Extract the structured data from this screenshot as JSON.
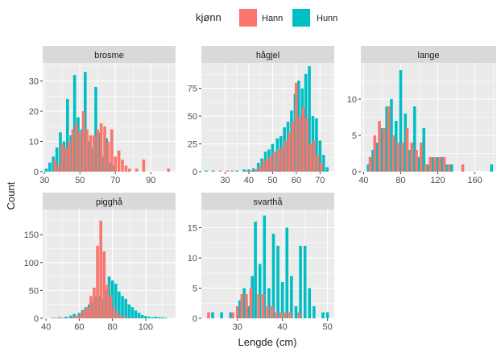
{
  "chart_data": {
    "type": "histogram",
    "xlabel": "Lengde (cm)",
    "ylabel": "Count",
    "legend": {
      "title": "kjønn",
      "position": "top",
      "items": [
        {
          "name": "Hann",
          "color": "#F8766D"
        },
        {
          "name": "Hunn",
          "color": "#00BFC4"
        }
      ]
    },
    "colors": {
      "panel": "#ebebeb",
      "grid": "#ffffff",
      "strip": "#d9d9d9",
      "Hann": "#F8766D",
      "Hunn": "#00BFC4"
    },
    "facets": [
      {
        "name": "brosme",
        "xlim": [
          29,
          104
        ],
        "ylim": [
          0,
          36
        ],
        "xticks": [
          30,
          50,
          70,
          90
        ],
        "yticks": [
          0,
          10,
          20,
          30
        ],
        "hunn": [
          [
            31,
            1
          ],
          [
            33,
            3
          ],
          [
            35,
            5
          ],
          [
            37,
            8
          ],
          [
            39,
            13
          ],
          [
            41,
            10
          ],
          [
            43,
            24
          ],
          [
            45,
            12
          ],
          [
            47,
            32
          ],
          [
            49,
            18
          ],
          [
            51,
            14
          ],
          [
            53,
            33
          ],
          [
            55,
            10
          ],
          [
            57,
            8
          ],
          [
            59,
            28
          ],
          [
            61,
            13
          ],
          [
            63,
            5
          ],
          [
            65,
            11
          ],
          [
            67,
            3
          ],
          [
            69,
            2
          ]
        ],
        "hann": [
          [
            36,
            4
          ],
          [
            38,
            2
          ],
          [
            40,
            9
          ],
          [
            42,
            8
          ],
          [
            44,
            10
          ],
          [
            46,
            14
          ],
          [
            48,
            16
          ],
          [
            50,
            13
          ],
          [
            52,
            20
          ],
          [
            54,
            14
          ],
          [
            56,
            12
          ],
          [
            58,
            12
          ],
          [
            60,
            14
          ],
          [
            62,
            16
          ],
          [
            64,
            15
          ],
          [
            66,
            10
          ],
          [
            68,
            14
          ],
          [
            70,
            5
          ],
          [
            72,
            7
          ],
          [
            74,
            4
          ],
          [
            76,
            2
          ],
          [
            78,
            1
          ],
          [
            82,
            1
          ],
          [
            86,
            4
          ],
          [
            100,
            1
          ]
        ]
      },
      {
        "name": "hågjel",
        "xlim": [
          20,
          76
        ],
        "ylim": [
          0,
          98
        ],
        "xticks": [
          30,
          40,
          50,
          60,
          70
        ],
        "yticks": [
          0,
          25,
          50,
          75
        ],
        "hunn": [
          [
            22,
            1
          ],
          [
            25,
            1
          ],
          [
            35,
            1
          ],
          [
            38,
            2
          ],
          [
            40,
            2
          ],
          [
            42,
            3
          ],
          [
            44,
            8
          ],
          [
            45.5,
            12
          ],
          [
            47,
            18
          ],
          [
            48.5,
            20
          ],
          [
            50,
            25
          ],
          [
            52,
            30
          ],
          [
            53.5,
            32
          ],
          [
            55,
            40
          ],
          [
            56.5,
            45
          ],
          [
            58,
            55
          ],
          [
            59.5,
            70
          ],
          [
            61,
            82
          ],
          [
            62.5,
            75
          ],
          [
            64,
            88
          ],
          [
            65.5,
            95
          ],
          [
            67,
            50
          ],
          [
            68.5,
            48
          ],
          [
            70,
            28
          ],
          [
            71.5,
            15
          ],
          [
            73,
            4
          ]
        ],
        "hann": [
          [
            28,
            1
          ],
          [
            31,
            1
          ],
          [
            33,
            1
          ],
          [
            39,
            1
          ],
          [
            41,
            1
          ],
          [
            43,
            2
          ],
          [
            44.7,
            5
          ],
          [
            46.2,
            10
          ],
          [
            47.7,
            12
          ],
          [
            49.2,
            14
          ],
          [
            50.7,
            18
          ],
          [
            52.5,
            20
          ],
          [
            54,
            22
          ],
          [
            55.5,
            28
          ],
          [
            57,
            35
          ],
          [
            58.5,
            45
          ],
          [
            60,
            80
          ],
          [
            61.5,
            50
          ],
          [
            63,
            58
          ],
          [
            64.5,
            48
          ],
          [
            66,
            25
          ],
          [
            67.5,
            28
          ],
          [
            69,
            15
          ],
          [
            70.5,
            8
          ]
        ]
      },
      {
        "name": "lange",
        "xlim": [
          37,
          183
        ],
        "ylim": [
          0,
          15
        ],
        "xticks": [
          40,
          80,
          120,
          160
        ],
        "yticks": [
          0,
          5,
          10
        ],
        "hunn": [
          [
            45,
            1
          ],
          [
            50,
            3
          ],
          [
            55,
            4
          ],
          [
            60,
            6
          ],
          [
            65,
            9
          ],
          [
            70,
            10
          ],
          [
            75,
            7
          ],
          [
            80,
            14
          ],
          [
            85,
            8
          ],
          [
            90,
            3
          ],
          [
            95,
            9
          ],
          [
            100,
            2
          ],
          [
            105,
            6
          ],
          [
            110,
            1
          ],
          [
            115,
            2
          ],
          [
            120,
            2
          ],
          [
            125,
            2
          ],
          [
            130,
            1
          ],
          [
            135,
            1
          ],
          [
            178,
            1
          ]
        ],
        "hann": [
          [
            47,
            2
          ],
          [
            52,
            5
          ],
          [
            57,
            7
          ],
          [
            62,
            6
          ],
          [
            67,
            9
          ],
          [
            72,
            5
          ],
          [
            77,
            4
          ],
          [
            82,
            4
          ],
          [
            87,
            6
          ],
          [
            92,
            4
          ],
          [
            97,
            3
          ],
          [
            102,
            4
          ],
          [
            107,
            1
          ],
          [
            112,
            2
          ],
          [
            117,
            2
          ],
          [
            122,
            2
          ],
          [
            127,
            2
          ],
          [
            132,
            1
          ],
          [
            147,
            1
          ]
        ]
      },
      {
        "name": "pigghå",
        "xlim": [
          38,
          118
        ],
        "ylim": [
          0,
          195
        ],
        "xticks": [
          40,
          60,
          80,
          100
        ],
        "yticks": [
          0,
          50,
          100,
          150
        ],
        "hunn": [
          [
            44,
            1
          ],
          [
            48,
            2
          ],
          [
            52,
            3
          ],
          [
            55,
            5
          ],
          [
            57,
            8
          ],
          [
            60,
            10
          ],
          [
            62,
            15
          ],
          [
            64,
            20
          ],
          [
            66,
            25
          ],
          [
            68,
            30
          ],
          [
            70,
            40
          ],
          [
            72,
            40
          ],
          [
            74,
            35
          ],
          [
            76,
            50
          ],
          [
            78,
            75
          ],
          [
            80,
            68
          ],
          [
            82,
            62
          ],
          [
            84,
            48
          ],
          [
            86,
            40
          ],
          [
            88,
            35
          ],
          [
            90,
            25
          ],
          [
            92,
            20
          ],
          [
            94,
            14
          ],
          [
            96,
            10
          ],
          [
            98,
            6
          ],
          [
            100,
            4
          ],
          [
            102,
            3
          ],
          [
            104,
            2
          ],
          [
            106,
            3
          ],
          [
            108,
            2
          ],
          [
            110,
            2
          ],
          [
            112,
            1
          ]
        ],
        "hann": [
          [
            46,
            1
          ],
          [
            50,
            1
          ],
          [
            54,
            2
          ],
          [
            57,
            3
          ],
          [
            59,
            5
          ],
          [
            61,
            10
          ],
          [
            63,
            15
          ],
          [
            65,
            20
          ],
          [
            67,
            40
          ],
          [
            69,
            55
          ],
          [
            71,
            130
          ],
          [
            73,
            175
          ],
          [
            75,
            120
          ],
          [
            77,
            60
          ],
          [
            79,
            40
          ],
          [
            81,
            20
          ],
          [
            83,
            10
          ],
          [
            85,
            5
          ],
          [
            87,
            3
          ],
          [
            90,
            1
          ]
        ]
      },
      {
        "name": "svarthå",
        "xlim": [
          22,
          51.5
        ],
        "ylim": [
          0,
          18
        ],
        "xticks": [
          30,
          40,
          50
        ],
        "yticks": [
          0,
          5,
          10,
          15
        ],
        "hunn": [
          [
            24.5,
            1
          ],
          [
            26.5,
            1
          ],
          [
            28.5,
            1
          ],
          [
            30.5,
            3
          ],
          [
            31.5,
            5
          ],
          [
            32.5,
            2
          ],
          [
            33.3,
            7
          ],
          [
            34,
            16
          ],
          [
            35,
            9
          ],
          [
            36,
            17
          ],
          [
            37,
            5
          ],
          [
            38,
            14
          ],
          [
            39,
            12
          ],
          [
            40,
            6
          ],
          [
            41,
            15
          ],
          [
            42,
            7
          ],
          [
            43,
            2
          ],
          [
            44,
            12
          ],
          [
            45,
            12
          ],
          [
            46,
            5
          ],
          [
            47,
            2
          ],
          [
            49,
            1
          ],
          [
            50,
            1
          ]
        ],
        "hann": [
          [
            23.6,
            1
          ],
          [
            29,
            1
          ],
          [
            30,
            2
          ],
          [
            31,
            4
          ],
          [
            32,
            4
          ],
          [
            33,
            5
          ],
          [
            34.7,
            4
          ],
          [
            35.7,
            4
          ],
          [
            36.7,
            2
          ],
          [
            37.7,
            2
          ],
          [
            38.7,
            1
          ],
          [
            39.7,
            1
          ],
          [
            40.7,
            1
          ],
          [
            41.7,
            1
          ],
          [
            43.7,
            1
          ]
        ]
      }
    ]
  }
}
